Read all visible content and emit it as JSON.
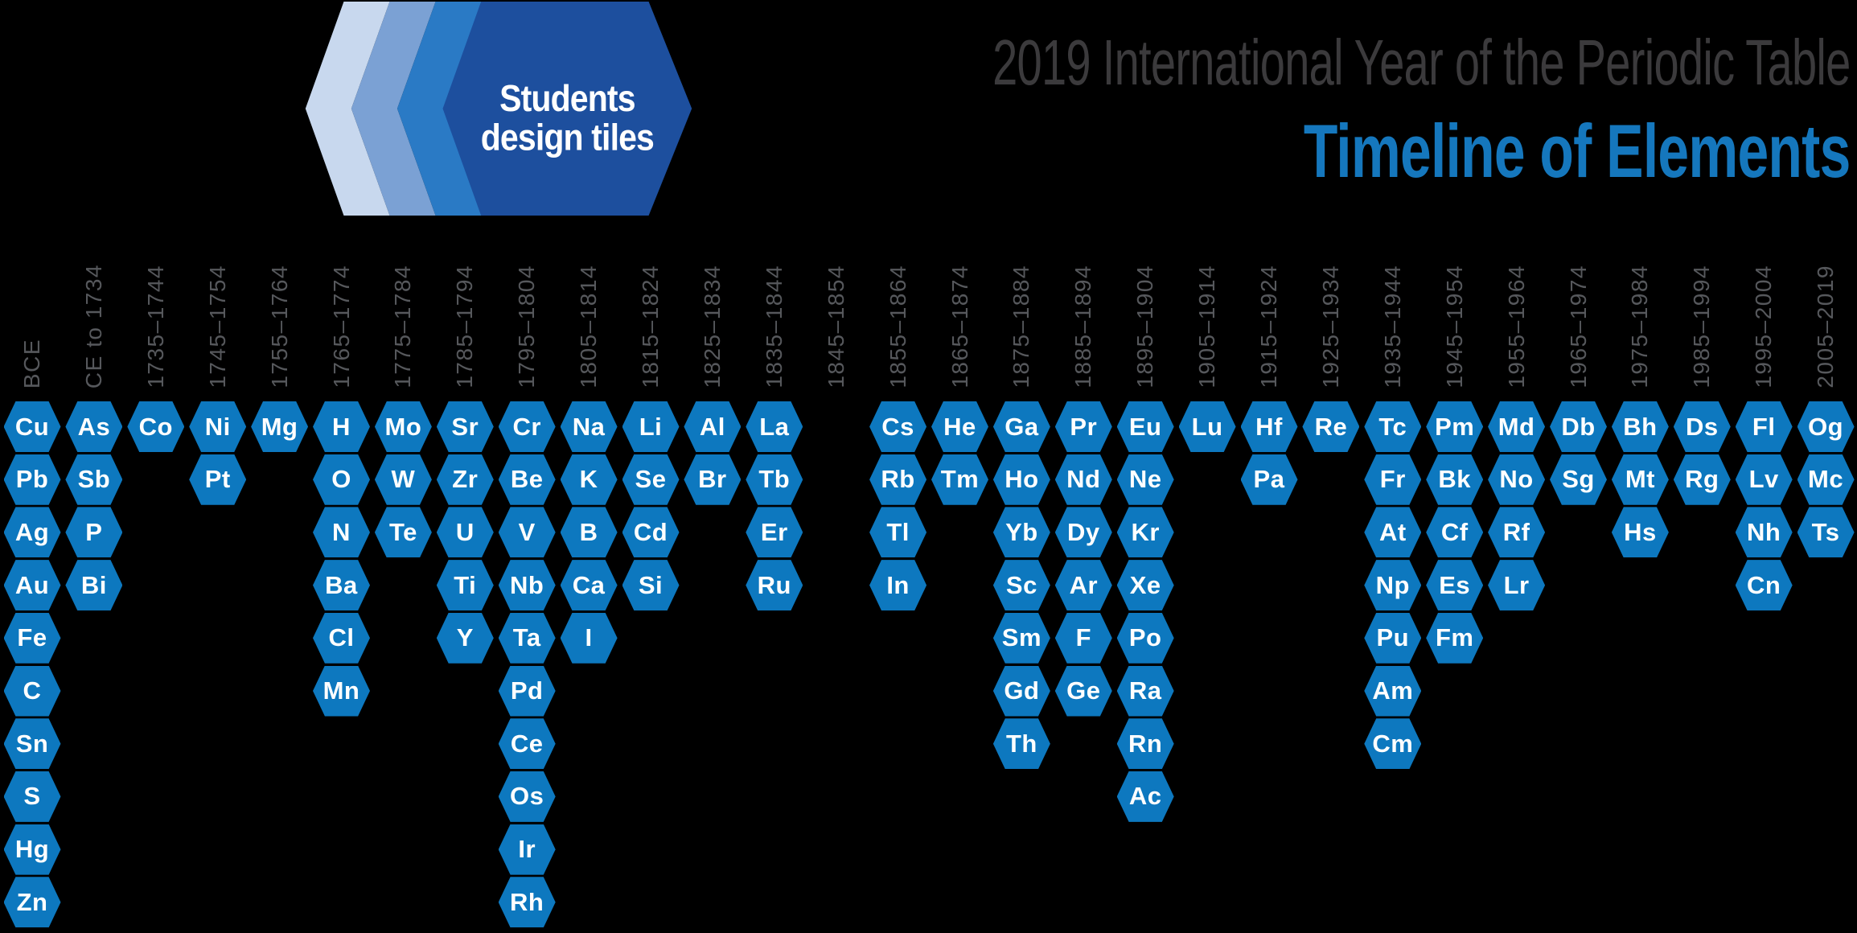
{
  "logo": {
    "line1": "Students",
    "line2": "design tiles",
    "chevron_colors": [
      "#c8d8ee",
      "#7ba1d4",
      "#2a7ac5"
    ],
    "hexagon_color": "#1d4f9e",
    "text_color": "#ffffff"
  },
  "header": {
    "title_line1": "2019 International Year of the Periodic Table",
    "title_line2": "Timeline of Elements",
    "title_line1_color": "#3b3a3c",
    "title_line2_color": "#1577bd"
  },
  "colors": {
    "background": "#000000",
    "tile_blue": "#0d78bf",
    "tile_text": "#ffffff",
    "period_label_gray": "#56585c"
  },
  "chart_data": {
    "type": "table",
    "title": "Timeline of Elements",
    "subtitle": "2019 International Year of the Periodic Table",
    "x_axis_meaning": "period of element discovery",
    "column_layout": "each period is a vertical stack of hexagonal element tiles, top-aligned",
    "categories": [
      "BCE",
      "CE to 1734",
      "1735–1744",
      "1745–1754",
      "1755–1764",
      "1765–1774",
      "1775–1784",
      "1785–1794",
      "1795–1804",
      "1805–1814",
      "1815–1824",
      "1825–1834",
      "1835–1844",
      "1845–1854",
      "1855–1864",
      "1865–1874",
      "1875–1884",
      "1885–1894",
      "1895–1904",
      "1905–1914",
      "1915–1924",
      "1925–1934",
      "1935–1944",
      "1945–1954",
      "1955–1964",
      "1965–1974",
      "1975–1984",
      "1985–1994",
      "1995–2004",
      "2005–2019"
    ],
    "columns": [
      {
        "period": "BCE",
        "elements": [
          "Cu",
          "Pb",
          "Ag",
          "Au",
          "Fe",
          "C",
          "Sn",
          "S",
          "Hg",
          "Zn"
        ]
      },
      {
        "period": "CE to 1734",
        "elements": [
          "As",
          "Sb",
          "P",
          "Bi"
        ]
      },
      {
        "period": "1735–1744",
        "elements": [
          "Co"
        ]
      },
      {
        "period": "1745–1754",
        "elements": [
          "Ni",
          "Pt"
        ]
      },
      {
        "period": "1755–1764",
        "elements": [
          "Mg"
        ]
      },
      {
        "period": "1765–1774",
        "elements": [
          "H",
          "O",
          "N",
          "Ba",
          "Cl",
          "Mn"
        ]
      },
      {
        "period": "1775–1784",
        "elements": [
          "Mo",
          "W",
          "Te"
        ]
      },
      {
        "period": "1785–1794",
        "elements": [
          "Sr",
          "Zr",
          "U",
          "Ti",
          "Y"
        ]
      },
      {
        "period": "1795–1804",
        "elements": [
          "Cr",
          "Be",
          "V",
          "Nb",
          "Ta",
          "Pd",
          "Ce",
          "Os",
          "Ir",
          "Rh"
        ]
      },
      {
        "period": "1805–1814",
        "elements": [
          "Na",
          "K",
          "B",
          "Ca",
          "I"
        ]
      },
      {
        "period": "1815–1824",
        "elements": [
          "Li",
          "Se",
          "Cd",
          "Si"
        ]
      },
      {
        "period": "1825–1834",
        "elements": [
          "Al",
          "Br"
        ]
      },
      {
        "period": "1835–1844",
        "elements": [
          "La",
          "Tb",
          "Er",
          "Ru"
        ]
      },
      {
        "period": "1845–1854",
        "elements": []
      },
      {
        "period": "1855–1864",
        "elements": [
          "Cs",
          "Rb",
          "Tl",
          "In"
        ]
      },
      {
        "period": "1865–1874",
        "elements": [
          "He",
          "Tm"
        ]
      },
      {
        "period": "1875–1884",
        "elements": [
          "Ga",
          "Ho",
          "Yb",
          "Sc",
          "Sm",
          "Gd",
          "Th"
        ]
      },
      {
        "period": "1885–1894",
        "elements": [
          "Pr",
          "Nd",
          "Dy",
          "Ar",
          "F",
          "Ge"
        ]
      },
      {
        "period": "1895–1904",
        "elements": [
          "Eu",
          "Ne",
          "Kr",
          "Xe",
          "Po",
          "Ra",
          "Rn",
          "Ac"
        ]
      },
      {
        "period": "1905–1914",
        "elements": [
          "Lu"
        ]
      },
      {
        "period": "1915–1924",
        "elements": [
          "Hf",
          "Pa"
        ]
      },
      {
        "period": "1925–1934",
        "elements": [
          "Re"
        ]
      },
      {
        "period": "1935–1944",
        "elements": [
          "Tc",
          "Fr",
          "At",
          "Np",
          "Pu",
          "Am",
          "Cm"
        ]
      },
      {
        "period": "1945–1954",
        "elements": [
          "Pm",
          "Bk",
          "Cf",
          "Es",
          "Fm"
        ]
      },
      {
        "period": "1955–1964",
        "elements": [
          "Md",
          "No",
          "Rf",
          "Lr"
        ]
      },
      {
        "period": "1965–1974",
        "elements": [
          "Db",
          "Sg"
        ]
      },
      {
        "period": "1975–1984",
        "elements": [
          "Bh",
          "Mt",
          "Hs"
        ]
      },
      {
        "period": "1985–1994",
        "elements": [
          "Ds",
          "Rg"
        ]
      },
      {
        "period": "1995–2004",
        "elements": [
          "Fl",
          "Lv",
          "Nh",
          "Cn"
        ]
      },
      {
        "period": "2005–2019",
        "elements": [
          "Og",
          "Mc",
          "Ts"
        ]
      }
    ]
  }
}
